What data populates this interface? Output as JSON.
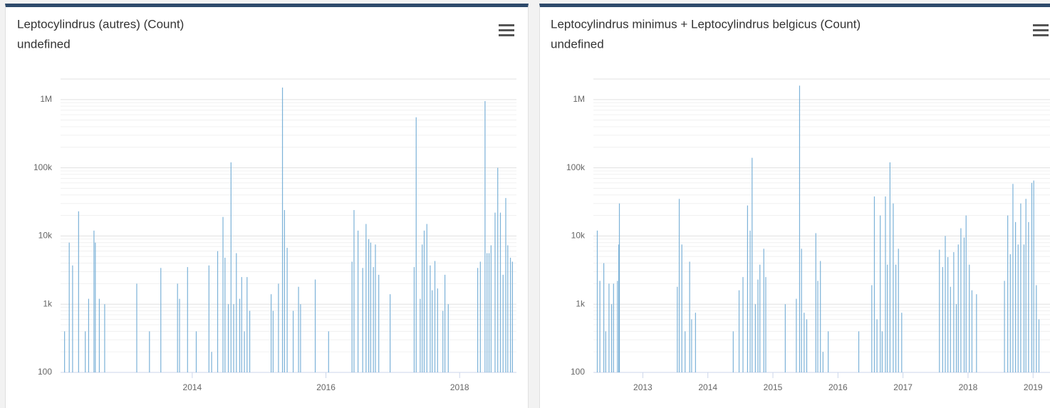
{
  "chart_data": [
    {
      "type": "bar",
      "title": "Leptocylindrus (autres) (Count)",
      "subtitle": "undefined",
      "color": "#7cb2d8",
      "log_scale": true,
      "grid": true,
      "xlim": [
        2012.03,
        2018.85
      ],
      "xticks": [
        2014,
        2016,
        2018
      ],
      "ylim": [
        100,
        2000000
      ],
      "yticks": [
        100,
        {
          "value": 1000,
          "label": "1k"
        },
        {
          "value": 10000,
          "label": "10k"
        },
        {
          "value": 100000,
          "label": "100k"
        },
        {
          "value": 1000000,
          "label": "1M"
        }
      ],
      "x": [
        2012.09,
        2012.16,
        2012.21,
        2012.3,
        2012.4,
        2012.45,
        2012.53,
        2012.55,
        2012.61,
        2012.69,
        2013.17,
        2013.36,
        2013.53,
        2013.78,
        2013.81,
        2013.93,
        2014.06,
        2014.25,
        2014.29,
        2014.38,
        2014.46,
        2014.49,
        2014.54,
        2014.58,
        2014.62,
        2014.66,
        2014.71,
        2014.74,
        2014.78,
        2014.82,
        2014.86,
        2015.18,
        2015.21,
        2015.29,
        2015.35,
        2015.38,
        2015.42,
        2015.51,
        2015.59,
        2015.62,
        2015.84,
        2016.04,
        2016.39,
        2016.42,
        2016.48,
        2016.55,
        2016.6,
        2016.64,
        2016.67,
        2016.71,
        2016.74,
        2016.79,
        2016.96,
        2017.32,
        2017.35,
        2017.41,
        2017.44,
        2017.47,
        2017.51,
        2017.56,
        2017.59,
        2017.63,
        2017.67,
        2017.75,
        2017.78,
        2017.83,
        2018.27,
        2018.31,
        2018.38,
        2018.41,
        2018.44,
        2018.47,
        2018.53,
        2018.57,
        2018.61,
        2018.65,
        2018.69,
        2018.72,
        2018.76,
        2018.79
      ],
      "values": [
        400,
        8000,
        3700,
        23000,
        400,
        1200,
        12000,
        8000,
        1200,
        1000,
        2000,
        400,
        3400,
        2000,
        1200,
        3500,
        400,
        3700,
        200,
        6000,
        19000,
        4800,
        1000,
        120000,
        1000,
        5600,
        1200,
        2500,
        400,
        2500,
        800,
        1400,
        800,
        2000,
        1500000,
        24000,
        6700,
        800,
        1800,
        1000,
        2300,
        400,
        4200,
        24000,
        12000,
        3400,
        15000,
        9000,
        8000,
        3500,
        7500,
        2700,
        1400,
        3500,
        550000,
        1200,
        7500,
        12000,
        15000,
        3700,
        1600,
        4300,
        1700,
        800,
        2700,
        1000,
        3400,
        4200,
        950000,
        5600,
        5600,
        7300,
        22000,
        100000,
        22000,
        2700,
        36000,
        7300,
        4800,
        4200
      ]
    },
    {
      "type": "bar",
      "title": "Leptocylindrus minimus + Leptocylindrus belgicus (Count)",
      "subtitle": "undefined",
      "color": "#7cb2d8",
      "log_scale": true,
      "grid": true,
      "xlim": [
        2012.24,
        2019.26
      ],
      "xticks": [
        2013,
        2014,
        2015,
        2016,
        2017,
        2018,
        2019
      ],
      "ylim": [
        100,
        2000000
      ],
      "yticks": [
        100,
        {
          "value": 1000,
          "label": "1k"
        },
        {
          "value": 10000,
          "label": "10k"
        },
        {
          "value": 100000,
          "label": "100k"
        },
        {
          "value": 1000000,
          "label": "1M"
        }
      ],
      "x": [
        2012.3,
        2012.34,
        2012.4,
        2012.43,
        2012.48,
        2012.52,
        2012.55,
        2012.61,
        2012.63,
        2012.64,
        2013.53,
        2013.56,
        2013.6,
        2013.65,
        2013.72,
        2013.75,
        2013.81,
        2014.39,
        2014.48,
        2014.54,
        2014.61,
        2014.65,
        2014.68,
        2014.73,
        2014.77,
        2014.8,
        2014.86,
        2014.89,
        2015.19,
        2015.36,
        2015.41,
        2015.44,
        2015.48,
        2015.52,
        2015.66,
        2015.69,
        2015.73,
        2015.77,
        2015.85,
        2016.32,
        2016.52,
        2016.56,
        2016.6,
        2016.65,
        2016.68,
        2016.73,
        2016.76,
        2016.8,
        2016.85,
        2016.89,
        2016.93,
        2016.98,
        2017.56,
        2017.61,
        2017.65,
        2017.69,
        2017.73,
        2017.78,
        2017.82,
        2017.85,
        2017.89,
        2017.94,
        2017.97,
        2018.02,
        2018.06,
        2018.13,
        2018.56,
        2018.61,
        2018.65,
        2018.69,
        2018.73,
        2018.77,
        2018.81,
        2018.86,
        2018.89,
        2018.93,
        2018.98,
        2019.01,
        2019.05,
        2019.09
      ],
      "values": [
        12000,
        2200,
        4000,
        400,
        2000,
        1000,
        2000,
        2200,
        7500,
        30000,
        1800,
        35000,
        7500,
        400,
        4200,
        600,
        750,
        400,
        1600,
        2500,
        28000,
        12000,
        140000,
        1000,
        2300,
        3800,
        6500,
        2500,
        1000,
        1200,
        1600000,
        6500,
        750,
        600,
        11000,
        2200,
        4300,
        200,
        400,
        400,
        1900,
        38000,
        600,
        20000,
        400,
        38000,
        3800,
        120000,
        30000,
        3800,
        6500,
        750,
        6300,
        3500,
        10000,
        4900,
        1800,
        5800,
        1000,
        7500,
        13000,
        9500,
        20000,
        3800,
        1600,
        1400,
        2200,
        20000,
        5400,
        58000,
        16000,
        7500,
        30000,
        7500,
        35000,
        16000,
        60000,
        65000,
        1900,
        600
      ]
    }
  ]
}
